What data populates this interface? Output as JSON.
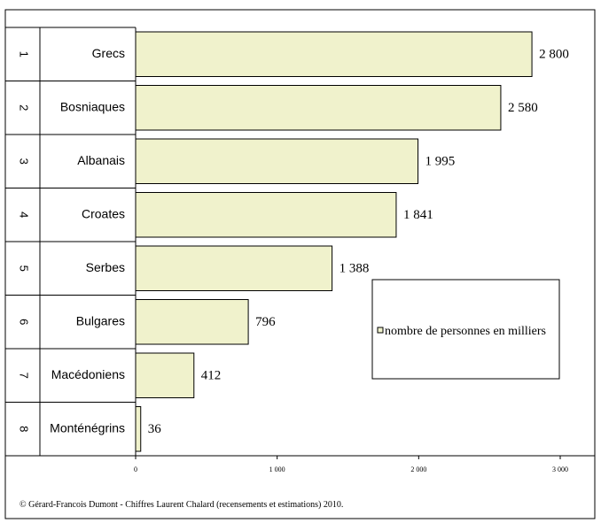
{
  "chart_data": {
    "type": "bar",
    "orientation": "horizontal",
    "ranks": [
      "1",
      "2",
      "3",
      "4",
      "5",
      "6",
      "7",
      "8"
    ],
    "categories": [
      "Grecs",
      "Bosniaques",
      "Albanais",
      "Croates",
      "Serbes",
      "Bulgares",
      "Macédoniens",
      "Monténégrins"
    ],
    "values": [
      2800,
      2580,
      1995,
      1841,
      1388,
      796,
      412,
      36
    ],
    "value_labels": [
      "2 800",
      "2 580",
      "1 995",
      "1 841",
      "1 388",
      "796",
      "412",
      "36"
    ],
    "series": [
      {
        "name": "nombre de personnes en milliers",
        "values": [
          2800,
          2580,
          1995,
          1841,
          1388,
          796,
          412,
          36
        ]
      }
    ],
    "xlim": [
      0,
      3000
    ],
    "x_ticks": [
      0,
      1000,
      2000,
      3000
    ],
    "x_tick_labels": [
      "0",
      "1 000",
      "2 000",
      "3 000"
    ],
    "grid": false,
    "legend_position": "right",
    "colors": {
      "bar_fill": "#f0f2cc",
      "bar_stroke": "#000000",
      "frame": "#000000"
    }
  },
  "footer": {
    "source": "© Gérard-Francois Dumont - Chiffres Laurent Chalard (recensements et estimations) 2010."
  }
}
